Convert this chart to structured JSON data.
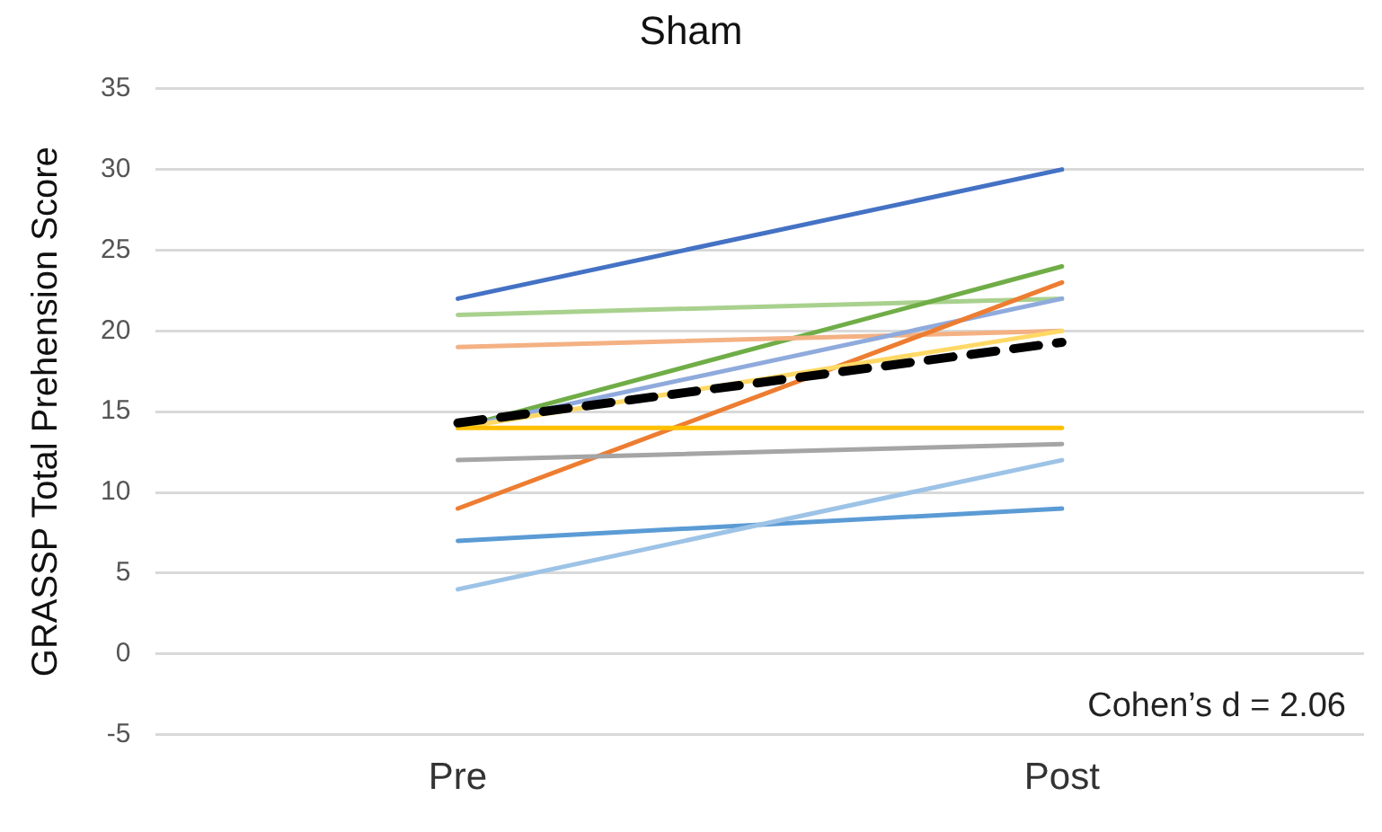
{
  "chart_data": {
    "type": "line",
    "title": "Sham",
    "ylabel": "GRASSP Total Prehension Score",
    "categories": [
      "Pre",
      "Post"
    ],
    "series": [
      {
        "color": "#4472c4",
        "values": [
          22,
          30
        ]
      },
      {
        "color": "#a9d18e",
        "values": [
          21,
          22
        ]
      },
      {
        "color": "#70ad47",
        "values": [
          14,
          24
        ]
      },
      {
        "color": "#f4b183",
        "values": [
          19,
          20
        ]
      },
      {
        "color": "#8faadc",
        "values": [
          14,
          22
        ]
      },
      {
        "color": "#ed7d31",
        "values": [
          9,
          23
        ]
      },
      {
        "color": "#ffd966",
        "values": [
          14,
          20
        ]
      },
      {
        "color": "#ffc000",
        "values": [
          14,
          14
        ]
      },
      {
        "color": "#a5a5a5",
        "values": [
          12,
          13
        ]
      },
      {
        "color": "#5b9bd5",
        "values": [
          7,
          9
        ]
      },
      {
        "color": "#9dc3e6",
        "values": [
          4,
          12
        ]
      },
      {
        "color": "#000000",
        "values": [
          14.3,
          19.3
        ],
        "line_style": "dashed"
      }
    ],
    "ylim": [
      -5,
      35
    ],
    "yticks": [
      -5,
      0,
      5,
      10,
      15,
      20,
      25,
      30,
      35
    ],
    "grid": "y",
    "legend": false,
    "marker": "none",
    "annotations": [
      "Cohen’s d = 2.06"
    ]
  }
}
